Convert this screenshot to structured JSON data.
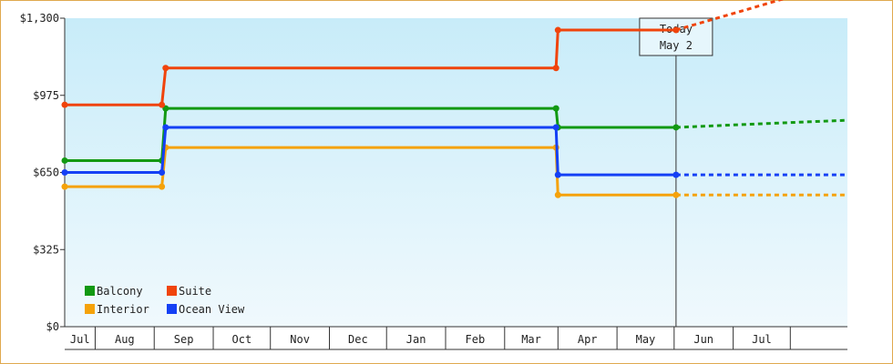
{
  "chart_data": {
    "type": "line",
    "y_ticks": [
      0,
      325,
      650,
      975,
      1300
    ],
    "y_tick_labels": [
      "$0",
      "$325",
      "$650",
      "$975",
      "$1,300"
    ],
    "ylim": [
      0,
      1300
    ],
    "x_months": [
      "Jul",
      "Aug",
      "Sep",
      "Oct",
      "Nov",
      "Dec",
      "Jan",
      "Feb",
      "Mar",
      "Apr",
      "May",
      "Jun",
      "Jul"
    ],
    "xlim": [
      "2024-06-15",
      "2025-07-31"
    ],
    "today": {
      "line1": "Today",
      "line2": "May 2",
      "date": "2025-05-02"
    },
    "grid": false,
    "legend_position": "bottom-left",
    "series": [
      {
        "name": "Balcony",
        "color": "#129912",
        "points": [
          [
            "2024-06-15",
            700
          ],
          [
            "2024-08-05",
            700
          ],
          [
            "2024-08-07",
            920
          ],
          [
            "2025-02-28",
            920
          ],
          [
            "2025-03-01",
            840
          ],
          [
            "2025-05-02",
            840
          ]
        ],
        "forecast": [
          [
            "2025-05-02",
            840
          ],
          [
            "2025-06-01",
            850
          ],
          [
            "2025-07-31",
            870
          ]
        ]
      },
      {
        "name": "Suite",
        "color": "#f0440c",
        "points": [
          [
            "2024-06-15",
            935
          ],
          [
            "2024-08-05",
            935
          ],
          [
            "2024-08-07",
            1090
          ],
          [
            "2025-02-28",
            1090
          ],
          [
            "2025-03-01",
            1250
          ],
          [
            "2025-05-02",
            1250
          ]
        ],
        "forecast": [
          [
            "2025-05-02",
            1250
          ],
          [
            "2025-06-01",
            1320
          ],
          [
            "2025-07-31",
            1460
          ]
        ]
      },
      {
        "name": "Interior",
        "color": "#f5a20a",
        "points": [
          [
            "2024-06-15",
            590
          ],
          [
            "2024-08-05",
            590
          ],
          [
            "2024-08-07",
            755
          ],
          [
            "2025-02-28",
            755
          ],
          [
            "2025-03-01",
            555
          ],
          [
            "2025-05-02",
            555
          ]
        ],
        "forecast": [
          [
            "2025-05-02",
            555
          ],
          [
            "2025-07-31",
            555
          ]
        ]
      },
      {
        "name": "Ocean View",
        "color": "#1440f5",
        "points": [
          [
            "2024-06-15",
            650
          ],
          [
            "2024-08-05",
            650
          ],
          [
            "2024-08-07",
            840
          ],
          [
            "2025-02-28",
            840
          ],
          [
            "2025-03-01",
            640
          ],
          [
            "2025-05-02",
            640
          ]
        ],
        "forecast": [
          [
            "2025-05-02",
            640
          ],
          [
            "2025-07-31",
            640
          ]
        ]
      }
    ]
  }
}
